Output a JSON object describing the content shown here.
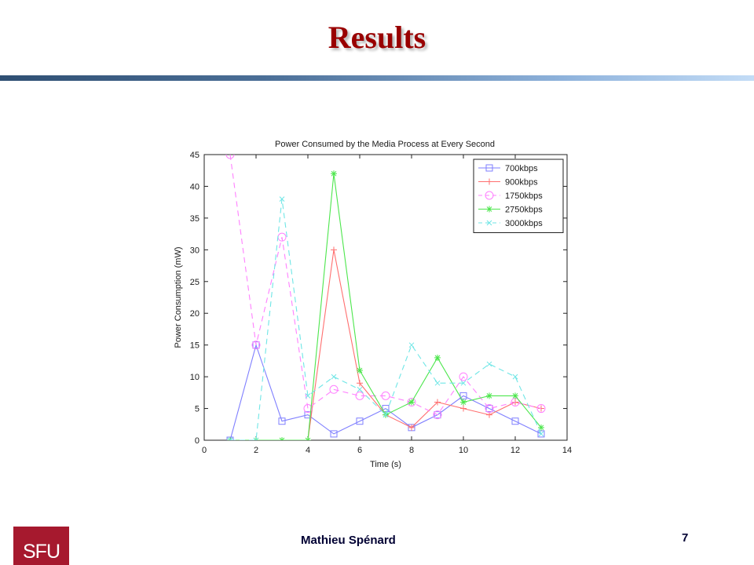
{
  "slide": {
    "title": "Results",
    "author": "Mathieu   Spénard",
    "page_number": "7",
    "logo_text": "SFU",
    "title_color": "#990000",
    "logo_color": "#a6192e"
  },
  "chart_data": {
    "type": "line",
    "title": "Power Consumed by the Media Process at Every Second",
    "xlabel": "Time (s)",
    "ylabel": "Power Consumption (mW)",
    "xlim": [
      0,
      14
    ],
    "ylim": [
      0,
      45
    ],
    "xticks": [
      0,
      2,
      4,
      6,
      8,
      10,
      12,
      14
    ],
    "yticks": [
      0,
      5,
      10,
      15,
      20,
      25,
      30,
      35,
      40,
      45
    ],
    "grid": false,
    "legend_position": "top-right",
    "series": [
      {
        "name": "700kbps",
        "color": "#7f7fff",
        "style": "solid",
        "marker": "square",
        "x": [
          1,
          2,
          3,
          4,
          5,
          6,
          7,
          8,
          9,
          10,
          11,
          12,
          13
        ],
        "y": [
          0,
          15,
          3,
          4,
          1,
          3,
          5,
          2,
          4,
          7,
          5,
          3,
          1
        ]
      },
      {
        "name": "900kbps",
        "color": "#ff6f6f",
        "style": "solid",
        "marker": "plus",
        "x": [
          1,
          2,
          3,
          4,
          5,
          6,
          7,
          8,
          9,
          10,
          11,
          12,
          13
        ],
        "y": [
          0,
          0,
          0,
          0,
          30,
          9,
          4,
          2,
          6,
          5,
          4,
          6,
          5
        ]
      },
      {
        "name": "1750kbps",
        "color": "#ff80ff",
        "style": "dashed",
        "marker": "circle",
        "x": [
          1,
          2,
          3,
          4,
          5,
          6,
          7,
          8,
          9,
          10,
          11,
          12,
          13
        ],
        "y": [
          45,
          15,
          32,
          5,
          8,
          7,
          7,
          6,
          4,
          10,
          5,
          6,
          5
        ]
      },
      {
        "name": "2750kbps",
        "color": "#4ce64c",
        "style": "solid",
        "marker": "star",
        "x": [
          1,
          2,
          3,
          4,
          5,
          6,
          7,
          8,
          9,
          10,
          11,
          12,
          13
        ],
        "y": [
          0,
          0,
          0,
          0,
          42,
          11,
          4,
          6,
          13,
          6,
          7,
          7,
          2
        ]
      },
      {
        "name": "3000kbps",
        "color": "#6fe6e6",
        "style": "dashed",
        "marker": "x",
        "x": [
          1,
          2,
          3,
          4,
          5,
          6,
          7,
          8,
          9,
          10,
          11,
          12,
          13
        ],
        "y": [
          0,
          0,
          38,
          7,
          10,
          8,
          4,
          15,
          9,
          9,
          12,
          10,
          1
        ]
      }
    ]
  }
}
